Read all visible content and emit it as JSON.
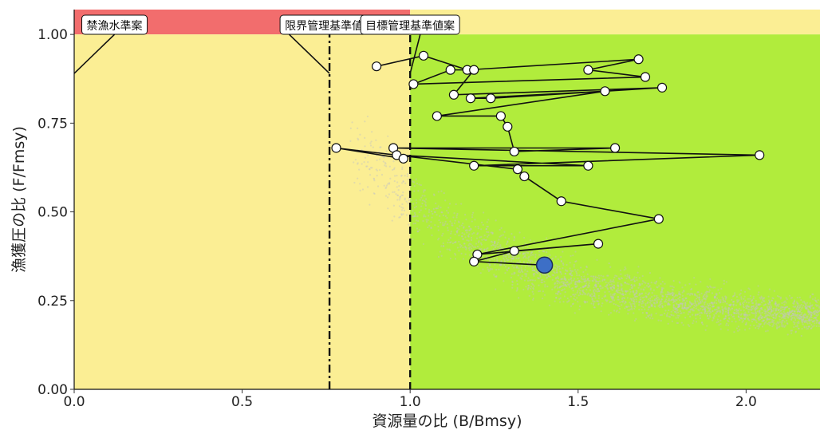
{
  "chart_data": {
    "type": "scatter",
    "xlabel": "資源量の比 (B/Bmsy)",
    "ylabel": "漁獲圧の比 (F/Fmsy)",
    "xlim": [
      0,
      2.22
    ],
    "ylim": [
      0,
      1.07
    ],
    "x_ticks": [
      0,
      0.5,
      1,
      1.5,
      2
    ],
    "x_tick_labels": [
      "0.0",
      "0.5",
      "1.0",
      "1.5",
      "2.0"
    ],
    "y_ticks": [
      0,
      0.25,
      0.5,
      0.75,
      1
    ],
    "y_tick_labels": [
      "0.00",
      "0.25",
      "0.50",
      "0.75",
      "1.00"
    ],
    "grid": false,
    "reference_lines": [
      {
        "label": "禁漁水準案",
        "x": 0.12,
        "style": "none"
      },
      {
        "label": "限界管理基準値案",
        "x": 0.76,
        "style": "dashdot"
      },
      {
        "label": "目標管理基準値案",
        "x": 1.0,
        "style": "dashed"
      }
    ],
    "zones": [
      {
        "name": "red",
        "color": "#f26d6d",
        "x": [
          0,
          1.0
        ],
        "y": [
          1.0,
          1.07
        ]
      },
      {
        "name": "yellow",
        "color": "#fbee94",
        "x": [
          0,
          1.0
        ],
        "y": [
          0,
          1.0
        ]
      },
      {
        "name": "yellow-top",
        "color": "#fbee94",
        "x": [
          1.0,
          2.22
        ],
        "y": [
          1.0,
          1.07
        ]
      },
      {
        "name": "green",
        "color": "#b1ec3c",
        "x": [
          1.0,
          2.22
        ],
        "y": [
          0,
          1.0
        ]
      }
    ],
    "hcr_segments": [
      {
        "points": [
          [
            0,
            0.89
          ],
          [
            0.12,
            1.0
          ]
        ]
      },
      {
        "points": [
          [
            0.64,
            1.0
          ],
          [
            0.76,
            0.89
          ]
        ]
      },
      {
        "points": [
          [
            1.0,
            0.89
          ],
          [
            1.03,
            1.0
          ]
        ]
      }
    ],
    "trajectory": [
      [
        0.9,
        0.91
      ],
      [
        1.04,
        0.94
      ],
      [
        1.17,
        0.9
      ],
      [
        1.68,
        0.93
      ],
      [
        1.53,
        0.9
      ],
      [
        1.7,
        0.88
      ],
      [
        1.01,
        0.86
      ],
      [
        1.12,
        0.9
      ],
      [
        1.19,
        0.9
      ],
      [
        1.13,
        0.83
      ],
      [
        1.75,
        0.85
      ],
      [
        1.24,
        0.82
      ],
      [
        1.18,
        0.82
      ],
      [
        1.58,
        0.84
      ],
      [
        1.08,
        0.77
      ],
      [
        1.27,
        0.77
      ],
      [
        1.29,
        0.74
      ],
      [
        1.31,
        0.67
      ],
      [
        1.61,
        0.68
      ],
      [
        0.95,
        0.68
      ],
      [
        2.04,
        0.66
      ],
      [
        1.19,
        0.63
      ],
      [
        1.53,
        0.63
      ],
      [
        0.96,
        0.66
      ],
      [
        0.98,
        0.65
      ],
      [
        0.78,
        0.68
      ],
      [
        1.32,
        0.62
      ],
      [
        1.34,
        0.6
      ],
      [
        1.45,
        0.53
      ],
      [
        1.74,
        0.48
      ],
      [
        1.2,
        0.38
      ],
      [
        1.56,
        0.41
      ],
      [
        1.31,
        0.39
      ],
      [
        1.19,
        0.36
      ]
    ],
    "current_point": [
      1.4,
      0.35
    ],
    "colors": {
      "trajectory_marker": "#ffffff",
      "current_marker": "#3d6fc6",
      "cloud": "#c4c4c4"
    }
  }
}
